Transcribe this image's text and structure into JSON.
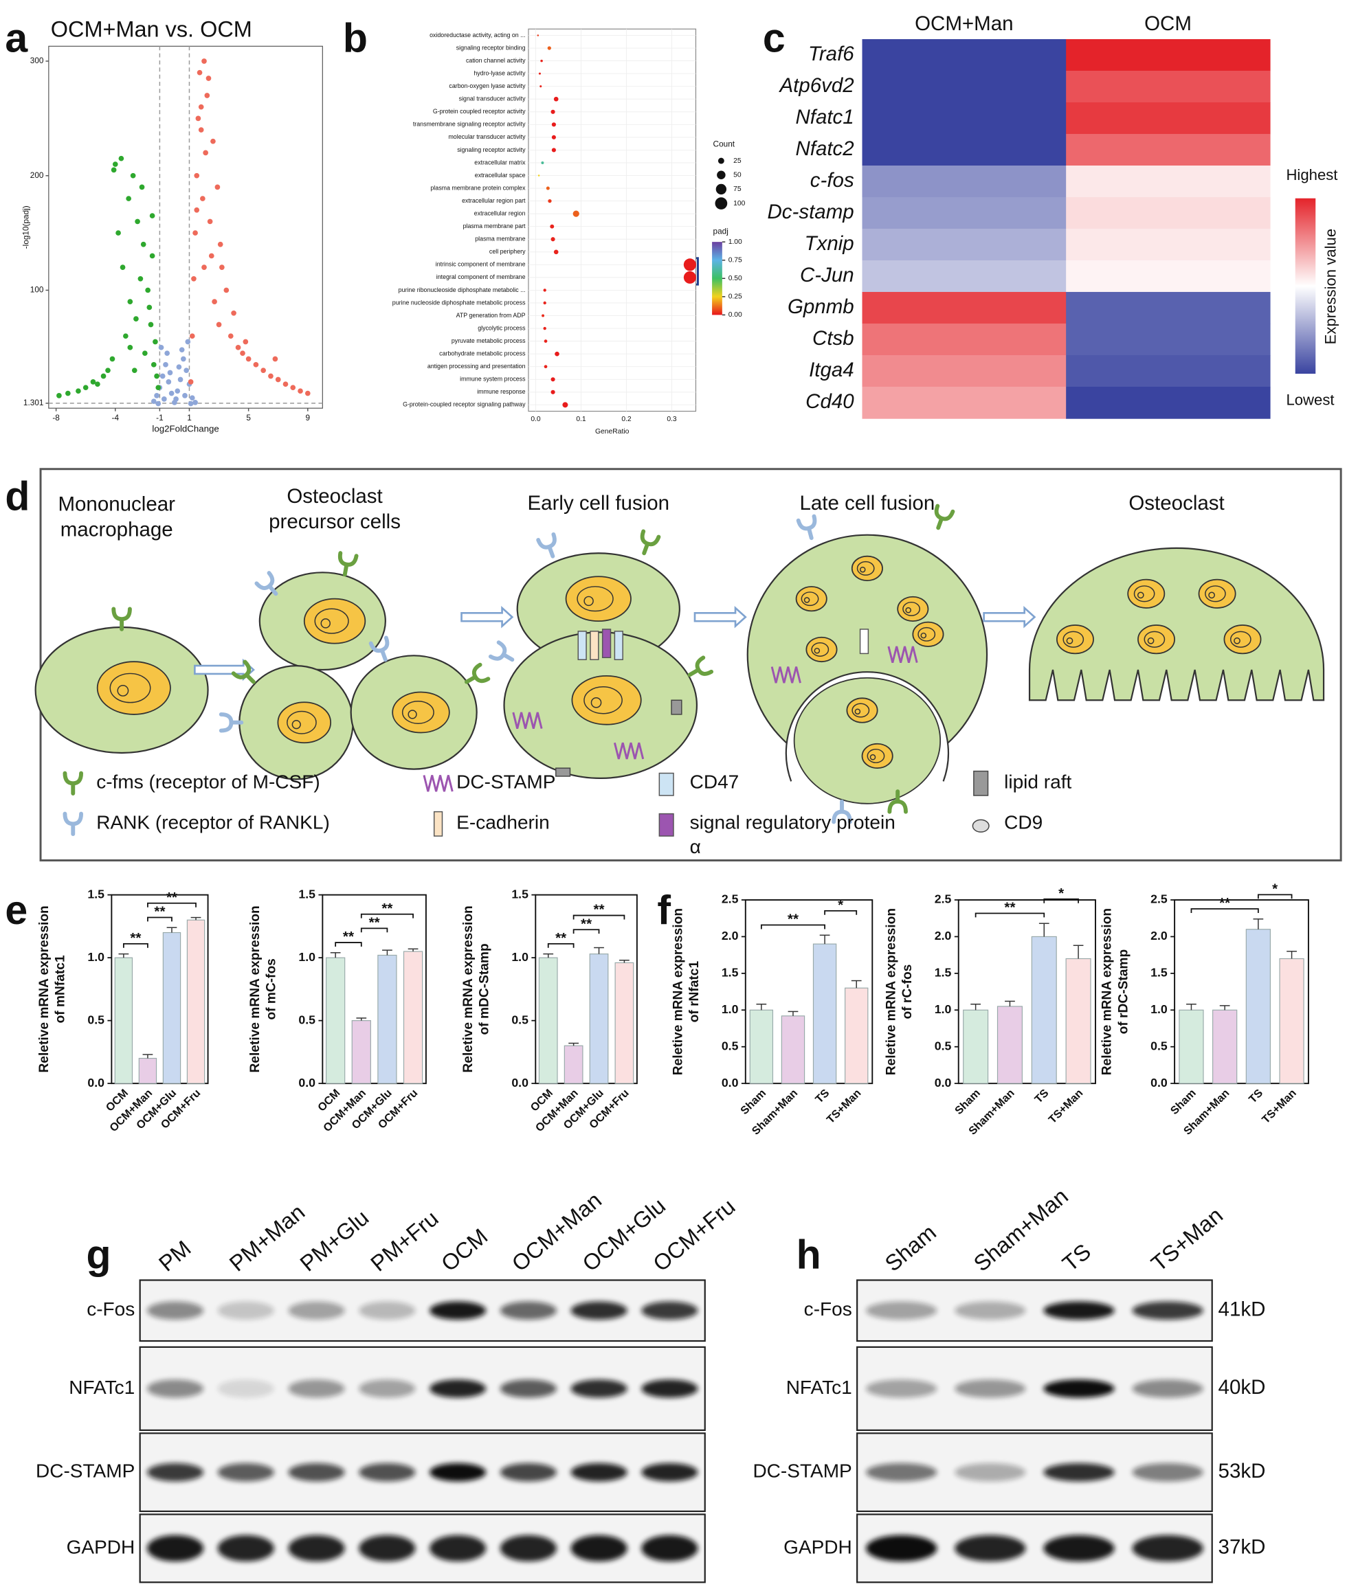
{
  "panel_labels": [
    "a",
    "b",
    "c",
    "d",
    "e",
    "f",
    "g",
    "h"
  ],
  "chart_data": [
    {
      "type": "scatter",
      "title": "OCM+Man vs. OCM",
      "x_label": "log2FoldChange",
      "y_label": "-log10(padj)",
      "xlim": [
        -8.5,
        10
      ],
      "ylim": [
        -3,
        313
      ],
      "xticks": [
        -8,
        -4,
        -1,
        1,
        5,
        9
      ],
      "yticks": [
        1.301,
        100,
        200,
        300
      ],
      "thresholds": {
        "x": [
          -1,
          1
        ],
        "y": 1.301
      },
      "series": [
        {
          "color": "#8ea6d8",
          "x": [
            -1.4,
            -1.2,
            -1.0,
            -0.8,
            -0.6,
            -0.4,
            -0.2,
            0,
            0.2,
            0.4,
            0.6,
            0.8,
            1.0,
            1.2,
            1.4,
            -0.9,
            -0.5,
            0.1,
            0.5,
            0.9,
            -0.3,
            0.3,
            -0.7,
            0.7,
            -1.1,
            1.1
          ],
          "y": [
            3,
            8,
            15,
            25,
            35,
            20,
            10,
            2,
            12,
            22,
            40,
            30,
            18,
            6,
            2,
            50,
            45,
            5,
            48,
            55,
            28,
            33,
            5,
            8,
            1,
            1
          ]
        },
        {
          "color": "#2ea82e",
          "x": [
            -7.8,
            -7.2,
            -6.5,
            -6.0,
            -5.5,
            -5.2,
            -4.8,
            -4.5,
            -4.2,
            -4.0,
            -3.8,
            -3.6,
            -3.5,
            -3.3,
            -3.1,
            -3.0,
            -2.8,
            -2.6,
            -2.5,
            -2.3,
            -2.1,
            -2.0,
            -1.8,
            -1.6,
            -1.5,
            -1.4,
            -1.3,
            -1.2,
            -1.1,
            -4.1,
            -3.0,
            -2.2,
            -1.7,
            -1.5,
            -2.7
          ],
          "y": [
            8,
            10,
            12,
            15,
            20,
            18,
            25,
            30,
            40,
            210,
            150,
            215,
            120,
            60,
            180,
            90,
            200,
            75,
            160,
            110,
            140,
            45,
            100,
            70,
            130,
            35,
            55,
            25,
            15,
            205,
            50,
            190,
            85,
            165,
            30
          ]
        },
        {
          "color": "#ee6a5a",
          "x": [
            1.1,
            1.2,
            1.3,
            1.4,
            1.5,
            1.6,
            1.7,
            1.8,
            1.9,
            2.0,
            2.1,
            2.2,
            2.4,
            2.5,
            2.7,
            2.9,
            3.0,
            3.2,
            3.5,
            3.8,
            4.0,
            4.3,
            4.6,
            5.0,
            5.5,
            6.0,
            6.5,
            7.0,
            7.5,
            8.0,
            8.5,
            9.0,
            2.3,
            2.6,
            3.1,
            1.5,
            1.8,
            2.0,
            4.8,
            6.8
          ],
          "y": [
            20,
            60,
            110,
            150,
            200,
            250,
            290,
            240,
            180,
            300,
            220,
            270,
            160,
            130,
            90,
            190,
            70,
            120,
            100,
            60,
            80,
            50,
            45,
            40,
            35,
            30,
            25,
            22,
            18,
            15,
            12,
            10,
            285,
            230,
            140,
            170,
            260,
            120,
            55,
            40
          ]
        }
      ]
    },
    {
      "type": "dot",
      "x_label": "GeneRatio",
      "categories": [
        "oxidoreductase activity, acting on ...",
        "signaling receptor binding",
        "cation channel activity",
        "hydro-lyase activity",
        "carbon-oxygen lyase activity",
        "signal transducer activity",
        "G-protein coupled receptor activity",
        "transmembrane signaling receptor activity",
        "molecular transducer activity",
        "signaling receptor activity",
        "extracellular matrix",
        "extracellular space",
        "plasma membrane protein complex",
        "extracellular region part",
        "extracellular region",
        "plasma membrane part",
        "plasma membrane",
        "cell periphery",
        "intrinsic component of membrane",
        "integral component of membrane",
        "purine ribonucleoside diphosphate metabolic ...",
        "purine nucleoside diphosphate metabolic process",
        "ATP generation from ADP",
        "glycolytic process",
        "pyruvate metabolic process",
        "carbohydrate metabolic process",
        "antigen processing and presentation",
        "immune system process",
        "immune response",
        "G-protein-coupled receptor signaling pathway"
      ],
      "values": [
        0.005,
        0.03,
        0.013,
        0.009,
        0.011,
        0.045,
        0.038,
        0.04,
        0.04,
        0.04,
        0.015,
        0.007,
        0.027,
        0.031,
        0.089,
        0.036,
        0.038,
        0.045,
        0.34,
        0.34,
        0.02,
        0.02,
        0.016,
        0.02,
        0.022,
        0.047,
        0.022,
        0.038,
        0.038,
        0.065
      ],
      "sizes": [
        2,
        9,
        4,
        3,
        3,
        14,
        12,
        12,
        12,
        12,
        5,
        2,
        8,
        9,
        27,
        11,
        12,
        14,
        105,
        104,
        6,
        6,
        5,
        6,
        7,
        14,
        7,
        12,
        12,
        20
      ],
      "padj": [
        0.05,
        0.1,
        0.02,
        0.02,
        0.02,
        0.01,
        0.01,
        0.01,
        0.01,
        0.01,
        0.6,
        0.25,
        0.1,
        0.05,
        0.1,
        0.02,
        0.02,
        0.02,
        0.01,
        0.01,
        0.02,
        0.02,
        0.03,
        0.02,
        0.02,
        0.01,
        0.02,
        0.01,
        0.01,
        0.01
      ],
      "xlim": [
        -0.016,
        0.353
      ],
      "xticks": [
        {
          "value": 0,
          "label": "0.0"
        },
        0.1,
        0.2,
        0.3
      ],
      "size_legend": {
        "title": "Count",
        "values": [
          25,
          50,
          75,
          100
        ]
      },
      "color_legend": {
        "title": "padj",
        "ticks": [
          {
            "value": 0,
            "label": "0.00"
          },
          0.25,
          {
            "value": 0.5,
            "label": "0.50"
          },
          0.75,
          {
            "value": 1,
            "label": "1.00"
          }
        ],
        "colors": [
          "#e8141c",
          "#f3d21c",
          "#3cc063",
          "#5cb3e6",
          "#6b3fa0"
        ]
      }
    },
    {
      "type": "heatmap",
      "columns": [
        "OCM+Man",
        "OCM"
      ],
      "rows": [
        "Traf6",
        "Atp6vd2",
        "Nfatc1",
        "Nfatc2",
        "c-fos",
        "Dc-stamp",
        "Txnip",
        "C-Jun",
        "Gpnmb",
        "Ctsb",
        "Itga4",
        "Cd40"
      ],
      "values": [
        [
          -1,
          0.9
        ],
        [
          -1,
          0.7
        ],
        [
          -1,
          0.8
        ],
        [
          -1,
          0.6
        ],
        [
          -0.6,
          0.05
        ],
        [
          -0.55,
          0.1
        ],
        [
          -0.45,
          0.05
        ],
        [
          -0.35,
          0
        ],
        [
          0.75,
          -0.85
        ],
        [
          0.55,
          -0.85
        ],
        [
          0.45,
          -0.9
        ],
        [
          0.35,
          -1
        ]
      ],
      "colorbar": {
        "title": "Expression value",
        "high": "Highest",
        "low": "Lowest",
        "colors": [
          "#3a44a0",
          "#ffffff",
          "#e4232a"
        ]
      }
    },
    {
      "type": "bar",
      "y_label": [
        "Reletive mRNA expression",
        "of mNfatc1"
      ],
      "categories": [
        "OCM",
        "OCM+Man",
        "OCM+Glu",
        "OCM+Fru"
      ],
      "values": [
        1.0,
        0.2,
        1.2,
        1.3
      ],
      "errors": [
        0.03,
        0.03,
        0.04,
        0.02
      ],
      "colors": [
        "#d5ebde",
        "#e8cde6",
        "#c9d9f0",
        "#fbe0e0"
      ],
      "ylim": [
        0,
        1.5
      ],
      "yticks": [
        {
          "value": 0,
          "label": "0.0"
        },
        0.5,
        {
          "value": 1,
          "label": "1.0"
        },
        1.5
      ],
      "significance": [
        {
          "pair": [
            0,
            1
          ],
          "label": "**"
        },
        {
          "pair": [
            1,
            2
          ],
          "label": "**"
        },
        {
          "pair": [
            1,
            3
          ],
          "label": "**"
        }
      ]
    },
    {
      "type": "bar",
      "y_label": [
        "Reletive mRNA expression",
        "of mC-fos"
      ],
      "categories": [
        "OCM",
        "OCM+Man",
        "OCM+Glu",
        "OCM+Fru"
      ],
      "values": [
        1.0,
        0.5,
        1.02,
        1.05
      ],
      "errors": [
        0.04,
        0.02,
        0.04,
        0.02
      ],
      "colors": [
        "#d5ebde",
        "#e8cde6",
        "#c9d9f0",
        "#fbe0e0"
      ],
      "ylim": [
        0,
        1.5
      ],
      "yticks": [
        {
          "value": 0,
          "label": "0.0"
        },
        0.5,
        {
          "value": 1,
          "label": "1.0"
        },
        1.5
      ],
      "significance": [
        {
          "pair": [
            0,
            1
          ],
          "label": "**"
        },
        {
          "pair": [
            1,
            2
          ],
          "label": "**"
        },
        {
          "pair": [
            1,
            3
          ],
          "label": "**"
        }
      ]
    },
    {
      "type": "bar",
      "y_label": [
        "Reletive mRNA expression",
        "of mDC-Stamp"
      ],
      "categories": [
        "OCM",
        "OCM+Man",
        "OCM+Glu",
        "OCM+Fru"
      ],
      "values": [
        1.0,
        0.3,
        1.03,
        0.96
      ],
      "errors": [
        0.03,
        0.02,
        0.05,
        0.02
      ],
      "colors": [
        "#d5ebde",
        "#e8cde6",
        "#c9d9f0",
        "#fbe0e0"
      ],
      "ylim": [
        0,
        1.5
      ],
      "yticks": [
        {
          "value": 0,
          "label": "0.0"
        },
        0.5,
        {
          "value": 1,
          "label": "1.0"
        },
        1.5
      ],
      "significance": [
        {
          "pair": [
            0,
            1
          ],
          "label": "**"
        },
        {
          "pair": [
            1,
            2
          ],
          "label": "**"
        },
        {
          "pair": [
            1,
            3
          ],
          "label": "**"
        }
      ]
    },
    {
      "type": "bar",
      "y_label": [
        "Reletive mRNA expression",
        "of rNfatc1"
      ],
      "categories": [
        "Sham",
        "Sham+Man",
        "TS",
        "TS+Man"
      ],
      "values": [
        1.0,
        0.92,
        1.9,
        1.3
      ],
      "errors": [
        0.08,
        0.06,
        0.12,
        0.1
      ],
      "colors": [
        "#d5ebde",
        "#e8cde6",
        "#c9d9f0",
        "#fbe0e0"
      ],
      "ylim": [
        0,
        2.5
      ],
      "yticks": [
        {
          "value": 0,
          "label": "0.0"
        },
        0.5,
        {
          "value": 1,
          "label": "1.0"
        },
        1.5,
        {
          "value": 2,
          "label": "2.0"
        },
        2.5
      ],
      "significance": [
        {
          "pair": [
            0,
            2
          ],
          "label": "**"
        },
        {
          "pair": [
            2,
            3
          ],
          "label": "*"
        }
      ]
    },
    {
      "type": "bar",
      "y_label": [
        "Reletive mRNA expression",
        "of rC-fos"
      ],
      "categories": [
        "Sham",
        "Sham+Man",
        "TS",
        "TS+Man"
      ],
      "values": [
        1.0,
        1.05,
        2.0,
        1.7
      ],
      "errors": [
        0.08,
        0.07,
        0.18,
        0.18
      ],
      "colors": [
        "#d5ebde",
        "#e8cde6",
        "#c9d9f0",
        "#fbe0e0"
      ],
      "ylim": [
        0,
        2.5
      ],
      "yticks": [
        {
          "value": 0,
          "label": "0.0"
        },
        0.5,
        {
          "value": 1,
          "label": "1.0"
        },
        1.5,
        {
          "value": 2,
          "label": "2.0"
        },
        2.5
      ],
      "significance": [
        {
          "pair": [
            0,
            2
          ],
          "label": "**"
        },
        {
          "pair": [
            2,
            3
          ],
          "label": "*"
        }
      ]
    },
    {
      "type": "bar",
      "y_label": [
        "Reletive mRNA expression",
        "of rDC-Stamp"
      ],
      "categories": [
        "Sham",
        "Sham+Man",
        "TS",
        "TS+Man"
      ],
      "values": [
        1.0,
        1.0,
        2.1,
        1.7
      ],
      "errors": [
        0.08,
        0.06,
        0.14,
        0.1
      ],
      "colors": [
        "#d5ebde",
        "#e8cde6",
        "#c9d9f0",
        "#fbe0e0"
      ],
      "ylim": [
        0,
        2.5
      ],
      "yticks": [
        {
          "value": 0,
          "label": "0.0"
        },
        0.5,
        {
          "value": 1,
          "label": "1.0"
        },
        1.5,
        {
          "value": 2,
          "label": "2.0"
        },
        2.5
      ],
      "significance": [
        {
          "pair": [
            0,
            2
          ],
          "label": "**"
        },
        {
          "pair": [
            2,
            3
          ],
          "label": "*"
        }
      ]
    }
  ],
  "diagram": {
    "stages": [
      {
        "lines": [
          "Mononuclear",
          "macrophage"
        ]
      },
      {
        "lines": [
          "Osteoclast",
          "precursor cells"
        ]
      },
      {
        "lines": [
          "Early cell fusion"
        ]
      },
      {
        "lines": [
          "Late cell fusion"
        ]
      },
      {
        "lines": [
          "Osteoclast"
        ]
      }
    ],
    "legend": [
      {
        "lines": [
          "c-fms (receptor of M-CSF)"
        ]
      },
      {
        "lines": [
          "RANK (receptor of RANKL)"
        ]
      },
      {
        "lines": [
          "DC-STAMP"
        ]
      },
      {
        "lines": [
          "E-cadherin"
        ]
      },
      {
        "lines": [
          "CD47"
        ]
      },
      {
        "lines": [
          "signal regulatory protein",
          "α"
        ]
      },
      {
        "lines": [
          "lipid raft"
        ]
      },
      {
        "lines": [
          "CD9"
        ]
      }
    ]
  },
  "blots": [
    {
      "lanes": [
        "PM",
        "PM+Man",
        "PM+Glu",
        "PM+Fru",
        "OCM",
        "OCM+Man",
        "OCM+Glu",
        "OCM+Fru"
      ],
      "rows": [
        {
          "label": "c-Fos",
          "intensity": [
            0.45,
            0.2,
            0.35,
            0.25,
            0.95,
            0.6,
            0.85,
            0.8
          ]
        },
        {
          "label": "NFATc1",
          "intensity": [
            0.45,
            0.12,
            0.4,
            0.35,
            0.9,
            0.65,
            0.85,
            0.9
          ]
        },
        {
          "label": "DC-STAMP",
          "intensity": [
            0.8,
            0.65,
            0.7,
            0.7,
            1,
            0.75,
            0.9,
            0.9
          ]
        },
        {
          "label": "GAPDH",
          "intensity": [
            0.95,
            0.9,
            0.9,
            0.9,
            0.9,
            0.9,
            0.95,
            0.95
          ]
        }
      ]
    },
    {
      "lanes": [
        "Sham",
        "Sham+Man",
        "TS",
        "TS+Man"
      ],
      "rows": [
        {
          "label": "c-Fos",
          "size": "41kD",
          "intensity": [
            0.35,
            0.3,
            0.95,
            0.8
          ]
        },
        {
          "label": "NFATc1",
          "size": "40kD",
          "intensity": [
            0.35,
            0.4,
            1,
            0.45
          ]
        },
        {
          "label": "DC-STAMP",
          "size": "53kD",
          "intensity": [
            0.55,
            0.3,
            0.85,
            0.5
          ]
        },
        {
          "label": "GAPDH",
          "size": "37kD",
          "intensity": [
            1,
            0.9,
            0.95,
            0.9
          ]
        }
      ]
    }
  ]
}
